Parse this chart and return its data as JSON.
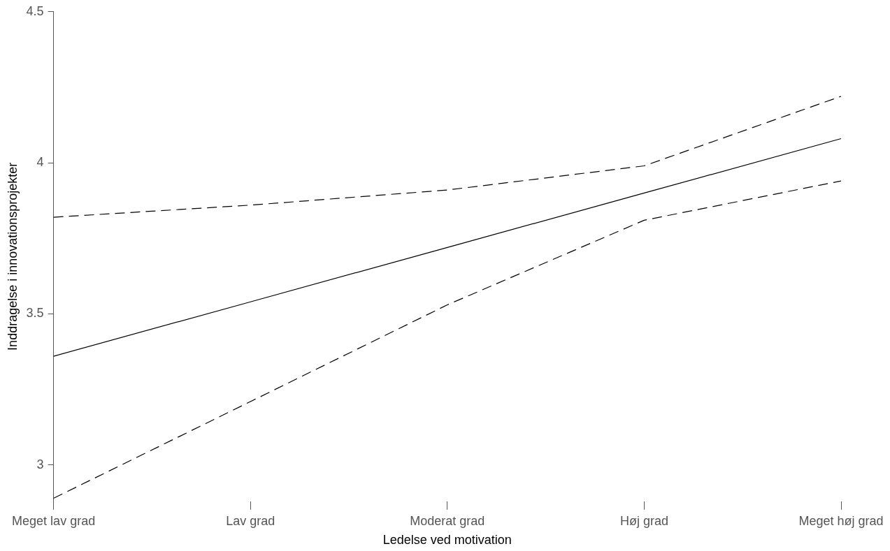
{
  "chart_data": {
    "type": "line",
    "xlabel": "Ledelse ved motivation",
    "ylabel": "Inddragelse i innovationsprojekter",
    "categories": [
      "Meget lav grad",
      "Lav grad",
      "Moderat grad",
      "Høj grad",
      "Meget høj grad"
    ],
    "series": [
      {
        "color": "#000000",
        "line_style": "solid",
        "values": [
          3.36,
          3.54,
          3.72,
          3.9,
          4.08
        ]
      },
      {
        "color": "#000000",
        "line_style": "dashed",
        "values": [
          3.82,
          3.86,
          3.91,
          3.99,
          4.22
        ]
      },
      {
        "color": "#000000",
        "line_style": "dashed",
        "values": [
          2.89,
          3.21,
          3.53,
          3.81,
          3.94
        ]
      }
    ],
    "ylim": [
      2.88,
      4.5
    ],
    "yticks": [
      3,
      3.5,
      4,
      4.5
    ],
    "grid": false,
    "legend": false,
    "marker": "none"
  }
}
